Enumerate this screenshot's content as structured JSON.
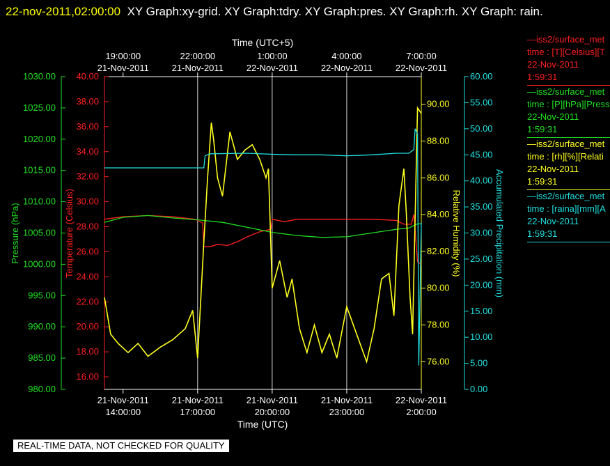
{
  "header": {
    "timestamp": "22-nov-2011,02:00:00",
    "titles": "XY Graph:xy-grid.  XY Graph:tdry.  XY Graph:pres.  XY Graph:rh.  XY Graph: rain."
  },
  "legend": [
    {
      "line1": "—iss2/surface_met",
      "line2": "time : [T][Celsius][T",
      "line3": "22-Nov-2011",
      "line4": "1:59:31",
      "color": "#ff2020"
    },
    {
      "line1": "—iss2/surface_met",
      "line2": "time : [P][hPa][Press",
      "line3": "22-Nov-2011",
      "line4": "1:59:31",
      "color": "#20e020"
    },
    {
      "line1": "—iss2/surface_met",
      "line2": "time : [rh][%][Relati",
      "line3": "22-Nov-2011",
      "line4": "1:59:31",
      "color": "#ffff20"
    },
    {
      "line1": "—iss2/surface_met",
      "line2": "time : [raina][mm][A",
      "line3": "22-Nov-2011",
      "line4": "1:59:31",
      "color": "#20e0e0"
    }
  ],
  "footer": "REAL-TIME DATA, NOT CHECKED FOR QUALITY",
  "chart_data": {
    "type": "line",
    "xlabel_bottom": "Time (UTC)",
    "xlabel_top": "Time (UTC+5)",
    "x_range_hours": [
      13.25,
      26.0
    ],
    "ticks_bottom": [
      {
        "hour": 14,
        "date": "21-Nov-2011",
        "time": "14:00:00"
      },
      {
        "hour": 17,
        "date": "21-Nov-2011",
        "time": "17:00:00"
      },
      {
        "hour": 20,
        "date": "21-Nov-2011",
        "time": "20:00:00"
      },
      {
        "hour": 23,
        "date": "21-Nov-2011",
        "time": "23:00:00"
      },
      {
        "hour": 26,
        "date": "22-Nov-2011",
        "time": "2:00:00"
      }
    ],
    "ticks_top": [
      {
        "hour": 14,
        "time": "19:00:00",
        "date": "21-Nov-2011"
      },
      {
        "hour": 17,
        "time": "22:00:00",
        "date": "21-Nov-2011"
      },
      {
        "hour": 20,
        "time": "1:00:00",
        "date": "22-Nov-2011"
      },
      {
        "hour": 23,
        "time": "4:00:00",
        "date": "22-Nov-2011"
      },
      {
        "hour": 26,
        "time": "7:00:00",
        "date": "22-Nov-2011"
      }
    ],
    "grid_hours": [
      17,
      20,
      23,
      26
    ],
    "axes": {
      "pressure": {
        "label": "Pressure (hPa)",
        "color": "#20e020",
        "range": [
          980,
          1030
        ],
        "ticks": [
          "980.00",
          "985.00",
          "990.00",
          "995.00",
          "1000.00",
          "1005.00",
          "1010.00",
          "1015.00",
          "1020.00",
          "1025.00",
          "1030.00"
        ]
      },
      "temperature": {
        "label": "Temperature (Celsius)",
        "color": "#ff2020",
        "range": [
          15,
          40
        ],
        "ticks": [
          "16.00",
          "18.00",
          "20.00",
          "22.00",
          "24.00",
          "26.00",
          "28.00",
          "30.00",
          "32.00",
          "34.00",
          "36.00",
          "38.00",
          "40.00"
        ]
      },
      "humidity": {
        "label": "Relative Humidity (%)",
        "color": "#ffff20",
        "range": [
          74.5,
          91.5
        ],
        "ticks": [
          "76.00",
          "78.00",
          "80.00",
          "82.00",
          "84.00",
          "86.00",
          "88.00",
          "90.00"
        ]
      },
      "precip": {
        "label": "Accumulated Precipitation (mm)",
        "color": "#20e0e0",
        "range": [
          0,
          60
        ],
        "ticks": [
          "0.00",
          "5.00",
          "10.00",
          "15.00",
          "20.00",
          "25.00",
          "30.00",
          "35.00",
          "40.00",
          "45.00",
          "50.00",
          "55.00",
          "60.00"
        ]
      }
    },
    "series": [
      {
        "name": "tdry",
        "axis": "temperature",
        "color": "#ff2020",
        "x": [
          13.25,
          14,
          15,
          16,
          16.9,
          17.2,
          17.25,
          17.5,
          17.8,
          18.2,
          18.6,
          19,
          19.5,
          19.95,
          20,
          20.5,
          21,
          22,
          23,
          24,
          25,
          25.3,
          25.6,
          25.7,
          25.75,
          25.85,
          26.0
        ],
        "y": [
          28.6,
          28.8,
          28.9,
          28.8,
          28.6,
          28.3,
          26.4,
          26.4,
          26.6,
          26.5,
          26.8,
          27.2,
          27.6,
          27.8,
          28.6,
          28.4,
          28.6,
          28.6,
          28.6,
          28.6,
          28.5,
          28.2,
          28.2,
          29.0,
          27.8,
          25.2,
          25.0
        ]
      },
      {
        "name": "pres",
        "axis": "pressure",
        "color": "#20e020",
        "x": [
          13.25,
          14,
          15,
          16,
          17,
          18,
          19,
          20,
          21,
          22,
          23,
          24,
          25,
          25.5,
          25.8,
          26.0
        ],
        "y": [
          1006.7,
          1007.5,
          1007.8,
          1007.4,
          1007.1,
          1006.7,
          1005.9,
          1005.1,
          1004.6,
          1004.3,
          1004.4,
          1005.0,
          1005.6,
          1005.8,
          1006.4,
          1006.5
        ]
      },
      {
        "name": "rh",
        "axis": "humidity",
        "color": "#ffff20",
        "x": [
          13.25,
          13.5,
          13.8,
          14.2,
          14.6,
          15,
          15.5,
          16,
          16.5,
          16.8,
          16.9,
          17.0,
          17.25,
          17.4,
          17.55,
          17.65,
          17.8,
          18.0,
          18.3,
          18.6,
          18.9,
          19.2,
          19.5,
          19.75,
          19.85,
          20.0,
          20.3,
          20.6,
          20.8,
          21.1,
          21.4,
          21.7,
          22.0,
          22.3,
          22.6,
          23.0,
          23.4,
          23.8,
          24.1,
          24.4,
          24.7,
          24.9,
          25.1,
          25.3,
          25.4,
          25.55,
          25.65,
          25.85,
          26.0
        ],
        "y": [
          79.5,
          77.5,
          77.0,
          76.5,
          77.0,
          76.3,
          76.8,
          77.2,
          77.8,
          78.8,
          77.5,
          76.2,
          82.5,
          86.0,
          89.0,
          88.0,
          86.0,
          85.0,
          88.5,
          87.0,
          87.5,
          87.8,
          87.0,
          86.0,
          86.5,
          80.0,
          81.5,
          79.5,
          80.5,
          77.8,
          76.5,
          78.0,
          76.5,
          77.5,
          76.2,
          79.0,
          77.5,
          76.0,
          77.8,
          80.5,
          80.8,
          78.5,
          84.5,
          86.5,
          84.0,
          79.5,
          77.5,
          89.8,
          89.5
        ]
      },
      {
        "name": "rain",
        "axis": "precip",
        "color": "#20e0e0",
        "x": [
          13.25,
          16.5,
          17.25,
          17.3,
          17.5,
          19.0,
          20.0,
          21.0,
          22.0,
          23.0,
          24.0,
          25.0,
          25.5,
          25.7,
          25.75,
          25.85,
          25.9,
          26.0
        ],
        "y": [
          42.5,
          42.5,
          42.5,
          44.8,
          45.2,
          45.3,
          45.1,
          45.0,
          45.0,
          44.8,
          45.0,
          45.3,
          45.3,
          46.0,
          50.0,
          49.0,
          4.6,
          32.0
        ]
      }
    ]
  }
}
